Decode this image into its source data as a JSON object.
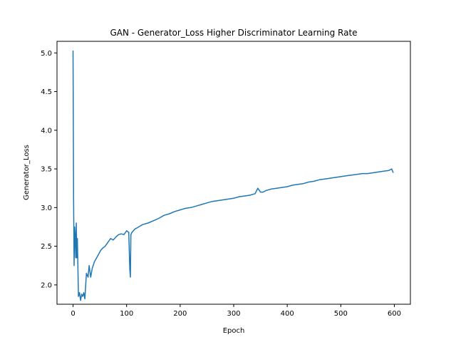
{
  "chart_data": {
    "type": "line",
    "title": "GAN - Generator_Loss Higher Discriminator Learning Rate",
    "xlabel": "Epoch",
    "ylabel": "Generator_Loss",
    "xlim": [
      -30,
      630
    ],
    "ylim": [
      1.75,
      5.15
    ],
    "xticks": [
      0,
      100,
      200,
      300,
      400,
      500,
      600
    ],
    "xtick_labels": [
      "0",
      "100",
      "200",
      "300",
      "400",
      "500",
      "600"
    ],
    "yticks": [
      2.0,
      2.5,
      3.0,
      3.5,
      4.0,
      4.5,
      5.0
    ],
    "ytick_labels": [
      "2.0",
      "2.5",
      "3.0",
      "3.5",
      "4.0",
      "4.5",
      "5.0"
    ],
    "grid": false,
    "legend": "none",
    "series": [
      {
        "color": "#1f77b4",
        "x": [
          0,
          1,
          2,
          3,
          4,
          5,
          6,
          7,
          8,
          10,
          12,
          14,
          16,
          18,
          20,
          22,
          25,
          28,
          30,
          33,
          36,
          40,
          44,
          48,
          52,
          56,
          60,
          65,
          70,
          75,
          80,
          85,
          90,
          95,
          100,
          104,
          106,
          107,
          108,
          110,
          115,
          120,
          125,
          130,
          140,
          150,
          160,
          170,
          180,
          190,
          200,
          210,
          220,
          230,
          240,
          250,
          260,
          270,
          280,
          290,
          300,
          310,
          320,
          330,
          340,
          345,
          350,
          355,
          360,
          370,
          380,
          390,
          400,
          410,
          420,
          430,
          440,
          450,
          460,
          470,
          480,
          490,
          500,
          510,
          520,
          530,
          540,
          550,
          560,
          570,
          580,
          590,
          595,
          598
        ],
        "values": [
          5.03,
          3.1,
          2.25,
          2.75,
          2.6,
          2.35,
          2.8,
          2.35,
          2.6,
          1.85,
          1.9,
          1.8,
          1.88,
          1.85,
          1.9,
          1.82,
          2.15,
          2.1,
          2.25,
          2.1,
          2.22,
          2.3,
          2.35,
          2.4,
          2.45,
          2.48,
          2.5,
          2.55,
          2.6,
          2.58,
          2.62,
          2.65,
          2.66,
          2.65,
          2.7,
          2.68,
          2.2,
          2.1,
          2.65,
          2.68,
          2.72,
          2.74,
          2.76,
          2.78,
          2.8,
          2.83,
          2.86,
          2.9,
          2.92,
          2.95,
          2.97,
          2.99,
          3.0,
          3.02,
          3.04,
          3.06,
          3.08,
          3.09,
          3.1,
          3.11,
          3.12,
          3.14,
          3.15,
          3.16,
          3.18,
          3.25,
          3.2,
          3.2,
          3.22,
          3.24,
          3.25,
          3.26,
          3.27,
          3.29,
          3.3,
          3.31,
          3.33,
          3.34,
          3.36,
          3.37,
          3.38,
          3.39,
          3.4,
          3.41,
          3.42,
          3.43,
          3.44,
          3.44,
          3.45,
          3.46,
          3.47,
          3.48,
          3.5,
          3.45
        ]
      }
    ]
  }
}
